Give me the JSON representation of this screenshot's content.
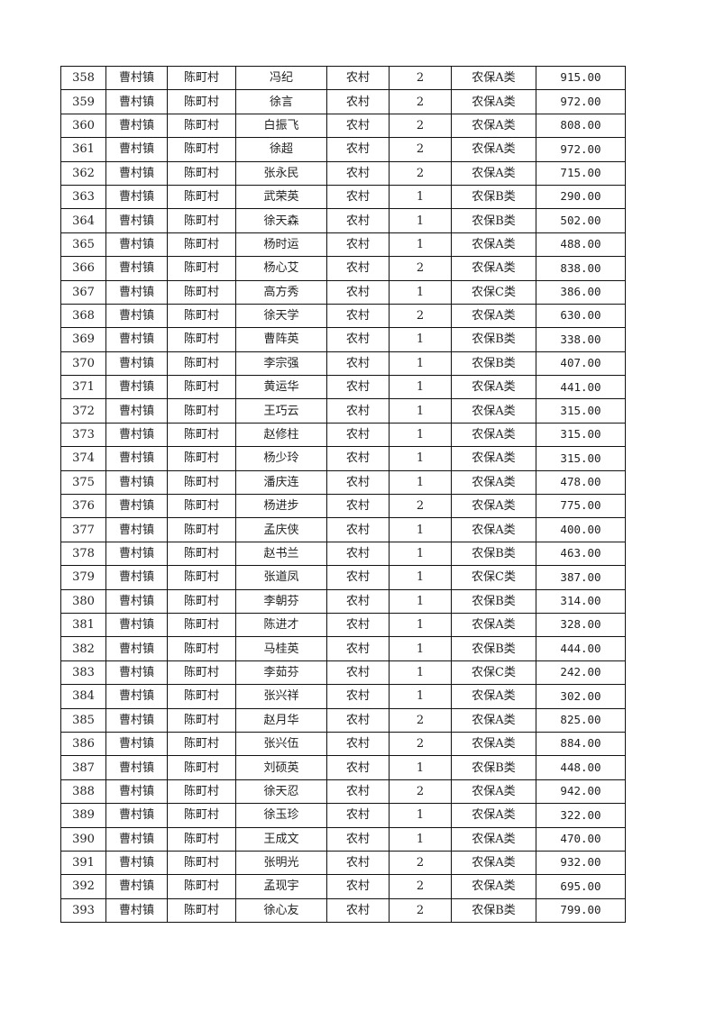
{
  "table": {
    "rows": [
      [
        "358",
        "曹村镇",
        "陈町村",
        "冯纪",
        "农村",
        "2",
        "农保A类",
        "915.00"
      ],
      [
        "359",
        "曹村镇",
        "陈町村",
        "徐言",
        "农村",
        "2",
        "农保A类",
        "972.00"
      ],
      [
        "360",
        "曹村镇",
        "陈町村",
        "白振飞",
        "农村",
        "2",
        "农保A类",
        "808.00"
      ],
      [
        "361",
        "曹村镇",
        "陈町村",
        "徐超",
        "农村",
        "2",
        "农保A类",
        "972.00"
      ],
      [
        "362",
        "曹村镇",
        "陈町村",
        "张永民",
        "农村",
        "2",
        "农保A类",
        "715.00"
      ],
      [
        "363",
        "曹村镇",
        "陈町村",
        "武荣英",
        "农村",
        "1",
        "农保B类",
        "290.00"
      ],
      [
        "364",
        "曹村镇",
        "陈町村",
        "徐天森",
        "农村",
        "1",
        "农保B类",
        "502.00"
      ],
      [
        "365",
        "曹村镇",
        "陈町村",
        "杨时运",
        "农村",
        "1",
        "农保A类",
        "488.00"
      ],
      [
        "366",
        "曹村镇",
        "陈町村",
        "杨心艾",
        "农村",
        "2",
        "农保A类",
        "838.00"
      ],
      [
        "367",
        "曹村镇",
        "陈町村",
        "高方秀",
        "农村",
        "1",
        "农保C类",
        "386.00"
      ],
      [
        "368",
        "曹村镇",
        "陈町村",
        "徐天学",
        "农村",
        "2",
        "农保A类",
        "630.00"
      ],
      [
        "369",
        "曹村镇",
        "陈町村",
        "曹阵英",
        "农村",
        "1",
        "农保B类",
        "338.00"
      ],
      [
        "370",
        "曹村镇",
        "陈町村",
        "李宗强",
        "农村",
        "1",
        "农保B类",
        "407.00"
      ],
      [
        "371",
        "曹村镇",
        "陈町村",
        "黄运华",
        "农村",
        "1",
        "农保A类",
        "441.00"
      ],
      [
        "372",
        "曹村镇",
        "陈町村",
        "王巧云",
        "农村",
        "1",
        "农保A类",
        "315.00"
      ],
      [
        "373",
        "曹村镇",
        "陈町村",
        "赵修柱",
        "农村",
        "1",
        "农保A类",
        "315.00"
      ],
      [
        "374",
        "曹村镇",
        "陈町村",
        "杨少玲",
        "农村",
        "1",
        "农保A类",
        "315.00"
      ],
      [
        "375",
        "曹村镇",
        "陈町村",
        "潘庆连",
        "农村",
        "1",
        "农保A类",
        "478.00"
      ],
      [
        "376",
        "曹村镇",
        "陈町村",
        "杨进步",
        "农村",
        "2",
        "农保A类",
        "775.00"
      ],
      [
        "377",
        "曹村镇",
        "陈町村",
        "孟庆侠",
        "农村",
        "1",
        "农保A类",
        "400.00"
      ],
      [
        "378",
        "曹村镇",
        "陈町村",
        "赵书兰",
        "农村",
        "1",
        "农保B类",
        "463.00"
      ],
      [
        "379",
        "曹村镇",
        "陈町村",
        "张道凤",
        "农村",
        "1",
        "农保C类",
        "387.00"
      ],
      [
        "380",
        "曹村镇",
        "陈町村",
        "李朝芬",
        "农村",
        "1",
        "农保B类",
        "314.00"
      ],
      [
        "381",
        "曹村镇",
        "陈町村",
        "陈进才",
        "农村",
        "1",
        "农保A类",
        "328.00"
      ],
      [
        "382",
        "曹村镇",
        "陈町村",
        "马桂英",
        "农村",
        "1",
        "农保B类",
        "444.00"
      ],
      [
        "383",
        "曹村镇",
        "陈町村",
        "李茹芬",
        "农村",
        "1",
        "农保C类",
        "242.00"
      ],
      [
        "384",
        "曹村镇",
        "陈町村",
        "张兴祥",
        "农村",
        "1",
        "农保A类",
        "302.00"
      ],
      [
        "385",
        "曹村镇",
        "陈町村",
        "赵月华",
        "农村",
        "2",
        "农保A类",
        "825.00"
      ],
      [
        "386",
        "曹村镇",
        "陈町村",
        "张兴伍",
        "农村",
        "2",
        "农保A类",
        "884.00"
      ],
      [
        "387",
        "曹村镇",
        "陈町村",
        "刘硕英",
        "农村",
        "1",
        "农保B类",
        "448.00"
      ],
      [
        "388",
        "曹村镇",
        "陈町村",
        "徐天忍",
        "农村",
        "2",
        "农保A类",
        "942.00"
      ],
      [
        "389",
        "曹村镇",
        "陈町村",
        "徐玉珍",
        "农村",
        "1",
        "农保A类",
        "322.00"
      ],
      [
        "390",
        "曹村镇",
        "陈町村",
        "王成文",
        "农村",
        "1",
        "农保A类",
        "470.00"
      ],
      [
        "391",
        "曹村镇",
        "陈町村",
        "张明光",
        "农村",
        "2",
        "农保A类",
        "932.00"
      ],
      [
        "392",
        "曹村镇",
        "陈町村",
        "孟现宇",
        "农村",
        "2",
        "农保A类",
        "695.00"
      ],
      [
        "393",
        "曹村镇",
        "陈町村",
        "徐心友",
        "农村",
        "2",
        "农保B类",
        "799.00"
      ]
    ]
  }
}
